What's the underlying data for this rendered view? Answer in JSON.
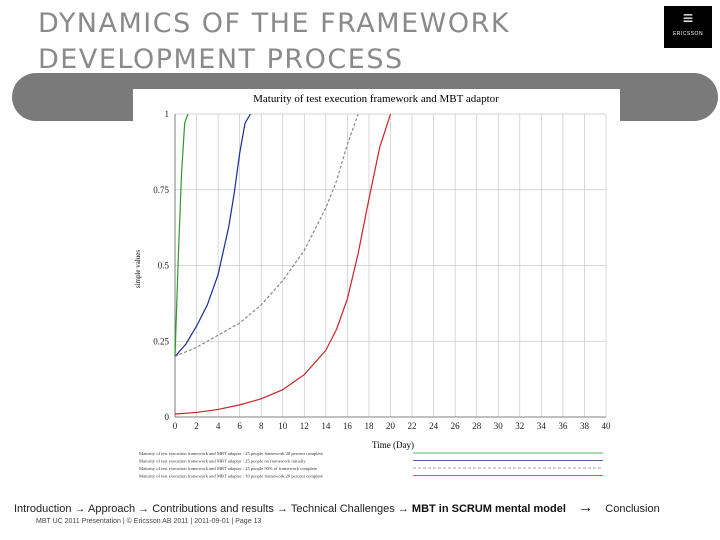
{
  "slide": {
    "title_line1": "DYNAMICS OF THE FRAMEWORK",
    "title_line2": "DEVELOPMENT PROCESS",
    "logo_text": "ERICSSON"
  },
  "nav": {
    "items": [
      {
        "label": "Introduction",
        "arrow": "→"
      },
      {
        "label": "Approach",
        "arrow": "→"
      },
      {
        "label": "Contributions and results",
        "arrow": "→"
      },
      {
        "label": "Technical Challenges",
        "arrow": "→"
      },
      {
        "label": "MBT in SCRUM mental model",
        "arrow": "→"
      },
      {
        "label": "Conclusion",
        "arrow": ""
      }
    ]
  },
  "footer": {
    "presentation": "MBT UC 2011 Presentation",
    "copyright": "© Ericsson AB 2011",
    "date": "2011-09-01",
    "page_label": "Page",
    "page_number": "13"
  },
  "chart_data": {
    "type": "line",
    "title": "Maturity of test execution framework and MBT adaptor",
    "xlabel": "Time (Day)",
    "ylabel": "simple values",
    "xlim": [
      0,
      40
    ],
    "ylim": [
      0,
      1
    ],
    "x_ticks": [
      "0",
      "2",
      "4",
      "6",
      "8",
      "10",
      "12",
      "14",
      "16",
      "18",
      "20",
      "22",
      "24",
      "26",
      "28",
      "30",
      "32",
      "34",
      "36",
      "38",
      "40"
    ],
    "y_ticks": [
      "0",
      "0.25",
      "0.5",
      "0.75",
      "1"
    ],
    "grid": true,
    "colors": {
      "green": "#2a9a2a",
      "blue": "#1a2a9a",
      "gray": "#888888",
      "red": "#cc2222"
    },
    "series": [
      {
        "name": "Maturity of test execution framework and MBT adaptor : 25 people framework 20 percent complete",
        "color": "#2a9a2a",
        "dash": "",
        "x": [
          0,
          0.3,
          0.6,
          0.9,
          1.2
        ],
        "y": [
          0.2,
          0.52,
          0.8,
          0.97,
          1.0
        ]
      },
      {
        "name": "Maturity of test execution framework and MBT adaptor : 25 people no framework initially",
        "color": "#1a2a9a",
        "dash": "",
        "x": [
          0,
          1,
          2,
          3,
          4,
          5,
          5.5,
          6,
          6.5,
          7
        ],
        "y": [
          0.2,
          0.24,
          0.3,
          0.37,
          0.47,
          0.63,
          0.74,
          0.87,
          0.97,
          1.0
        ]
      },
      {
        "name": "Maturity of test execution framework and MBT adaptor : 25 people 90% of framework complete",
        "color": "#888888",
        "dash": "3,2",
        "x": [
          0,
          2,
          4,
          6,
          8,
          10,
          12,
          14,
          15,
          16,
          17
        ],
        "y": [
          0.2,
          0.23,
          0.27,
          0.31,
          0.37,
          0.45,
          0.55,
          0.69,
          0.78,
          0.9,
          1.0
        ]
      },
      {
        "name": "Maturity of test execution framework and MBT adaptor : 10 people framework 20 percent complete",
        "color": "#cc2222",
        "dash": "",
        "x": [
          0,
          2,
          4,
          6,
          8,
          10,
          12,
          14,
          15,
          16,
          17,
          18,
          19,
          20
        ],
        "y": [
          0.01,
          0.015,
          0.025,
          0.04,
          0.06,
          0.09,
          0.14,
          0.22,
          0.29,
          0.39,
          0.54,
          0.72,
          0.89,
          1.0
        ]
      }
    ],
    "legend_placement": "bottom"
  }
}
